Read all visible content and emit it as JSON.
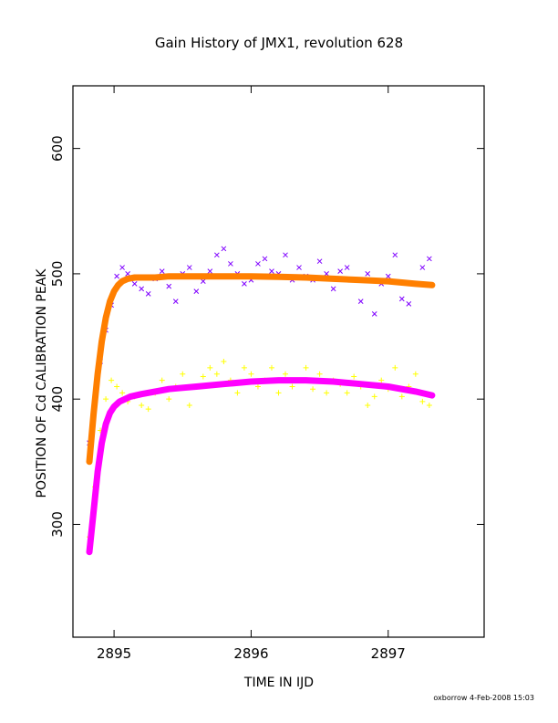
{
  "chart_data": {
    "type": "scatter",
    "title": "Gain History of JMX1, revolution 628",
    "xlabel": "TIME IN IJD",
    "ylabel": "POSITION OF Cd CALIBRATION PEAK",
    "xlim": [
      2894.7,
      2897.7
    ],
    "ylim": [
      210,
      650
    ],
    "xticks": [
      2895,
      2896,
      2897
    ],
    "yticks": [
      300,
      400,
      500,
      600
    ],
    "grid": false,
    "series": [
      {
        "marker": "x",
        "color": "#7f00ff",
        "x": [
          2894.82,
          2894.86,
          2894.9,
          2894.94,
          2894.98,
          2895.02,
          2895.06,
          2895.1,
          2895.15,
          2895.2,
          2895.25,
          2895.3,
          2895.35,
          2895.4,
          2895.45,
          2895.5,
          2895.55,
          2895.6,
          2895.65,
          2895.7,
          2895.75,
          2895.8,
          2895.85,
          2895.9,
          2895.95,
          2896.0,
          2896.05,
          2896.1,
          2896.15,
          2896.2,
          2896.25,
          2896.3,
          2896.35,
          2896.4,
          2896.45,
          2896.5,
          2896.55,
          2896.6,
          2896.65,
          2896.7,
          2896.75,
          2896.8,
          2896.85,
          2896.9,
          2896.95,
          2897.0,
          2897.05,
          2897.1,
          2897.15,
          2897.2,
          2897.25,
          2897.3
        ],
        "y": [
          365,
          400,
          430,
          455,
          475,
          498,
          505,
          500,
          492,
          488,
          484,
          496,
          502,
          490,
          478,
          500,
          505,
          486,
          494,
          502,
          515,
          520,
          508,
          500,
          492,
          495,
          508,
          512,
          502,
          500,
          515,
          495,
          505,
          498,
          495,
          510,
          500,
          488,
          502,
          505,
          495,
          478,
          500,
          468,
          492,
          498,
          515,
          480,
          476,
          492,
          505,
          512
        ]
      },
      {
        "marker": "line",
        "color": "#ff7f00",
        "x": [
          2894.82,
          2894.85,
          2894.88,
          2894.91,
          2894.94,
          2894.97,
          2895.0,
          2895.03,
          2895.06,
          2895.1,
          2895.15,
          2895.2,
          2895.3,
          2895.4,
          2895.5,
          2895.6,
          2895.8,
          2896.0,
          2896.2,
          2896.4,
          2896.6,
          2896.8,
          2897.0,
          2897.2,
          2897.32
        ],
        "y": [
          350,
          388,
          420,
          446,
          465,
          478,
          486,
          491,
          494,
          496,
          497,
          497,
          497,
          498,
          498,
          498,
          498,
          498,
          497.5,
          497,
          496,
          495,
          494,
          492,
          491
        ]
      },
      {
        "marker": "+",
        "color": "#ffff00",
        "x": [
          2894.82,
          2894.86,
          2894.9,
          2894.94,
          2894.98,
          2895.02,
          2895.06,
          2895.1,
          2895.15,
          2895.2,
          2895.25,
          2895.3,
          2895.35,
          2895.4,
          2895.45,
          2895.5,
          2895.55,
          2895.6,
          2895.65,
          2895.7,
          2895.75,
          2895.8,
          2895.85,
          2895.9,
          2895.95,
          2896.0,
          2896.05,
          2896.1,
          2896.15,
          2896.2,
          2896.25,
          2896.3,
          2896.35,
          2896.4,
          2896.45,
          2896.5,
          2896.55,
          2896.6,
          2896.65,
          2896.7,
          2896.75,
          2896.8,
          2896.85,
          2896.9,
          2896.95,
          2897.0,
          2897.05,
          2897.1,
          2897.15,
          2897.2,
          2897.25,
          2897.3
        ],
        "y": [
          290,
          330,
          375,
          400,
          415,
          410,
          405,
          398,
          402,
          395,
          392,
          405,
          415,
          400,
          410,
          420,
          395,
          410,
          418,
          425,
          420,
          430,
          415,
          405,
          425,
          420,
          410,
          415,
          425,
          405,
          420,
          410,
          415,
          425,
          408,
          420,
          405,
          415,
          412,
          405,
          418,
          410,
          395,
          402,
          415,
          408,
          425,
          402,
          410,
          420,
          398,
          395
        ]
      },
      {
        "marker": "line",
        "color": "#ff00ff",
        "x": [
          2894.82,
          2894.85,
          2894.88,
          2894.91,
          2894.94,
          2894.97,
          2895.0,
          2895.04,
          2895.08,
          2895.12,
          2895.2,
          2895.3,
          2895.4,
          2895.5,
          2895.6,
          2895.8,
          2896.0,
          2896.2,
          2896.4,
          2896.6,
          2896.8,
          2897.0,
          2897.2,
          2897.32
        ],
        "y": [
          278,
          310,
          342,
          365,
          380,
          389,
          394,
          398,
          400,
          402,
          404,
          406,
          408,
          409,
          410,
          412,
          414,
          415,
          415,
          414,
          412,
          410,
          406,
          403
        ]
      }
    ]
  },
  "footer": "oxborrow  4-Feb-2008 15:03"
}
